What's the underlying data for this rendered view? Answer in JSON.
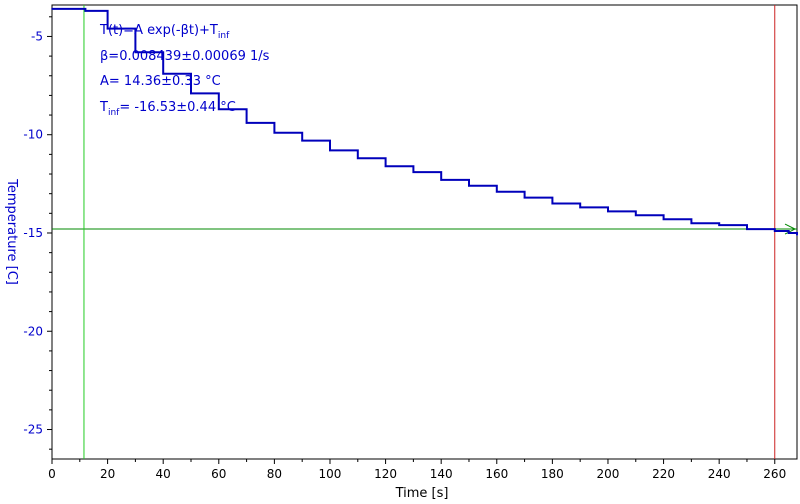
{
  "chart_data": {
    "type": "line",
    "title": "",
    "xlabel": "Time [s]",
    "ylabel": "Temperature [C]",
    "xlim": [
      0,
      268
    ],
    "ylim": [
      -26.5,
      -3.4
    ],
    "x_ticks": [
      0,
      20,
      40,
      60,
      80,
      100,
      120,
      140,
      160,
      180,
      200,
      220,
      240,
      260
    ],
    "y_ticks": [
      -5,
      -10,
      -15,
      -20,
      -25
    ],
    "grid": false,
    "colors": {
      "series": "#0000bb",
      "text": "#0000cc",
      "axis_text": "#000000",
      "marker_green": "#22cc22",
      "marker_red": "#cc2222",
      "hline": "#008800"
    },
    "series": [
      {
        "x": [
          0,
          11.5,
          12,
          20,
          30,
          40,
          50,
          60,
          70,
          80,
          90,
          100,
          110,
          120,
          130,
          140,
          150,
          160,
          170,
          180,
          190,
          200,
          210,
          220,
          230,
          240,
          250,
          260,
          265,
          268
        ],
        "y": [
          -3.6,
          -3.6,
          -3.7,
          -4.6,
          -5.8,
          -6.9,
          -7.9,
          -8.7,
          -9.4,
          -9.9,
          -10.3,
          -10.8,
          -11.2,
          -11.6,
          -11.9,
          -12.3,
          -12.6,
          -12.9,
          -13.2,
          -13.5,
          -13.7,
          -13.9,
          -14.1,
          -14.3,
          -14.5,
          -14.6,
          -14.8,
          -14.9,
          -15.0,
          -15.1
        ]
      }
    ],
    "markers": {
      "green_vline_x": 11.5,
      "red_vline_x": 260,
      "green_hline_y": -14.8
    },
    "annotations": {
      "line1_main": "T(t)=A exp(-βt)+T",
      "line1_sub": "inf",
      "line2": "β=0.008439±0.00069 1/s",
      "line3": "A= 14.36±0.33 °C",
      "line4_pre": "T",
      "line4_sub": "inf",
      "line4_post": "= -16.53±0.44 °C"
    }
  }
}
